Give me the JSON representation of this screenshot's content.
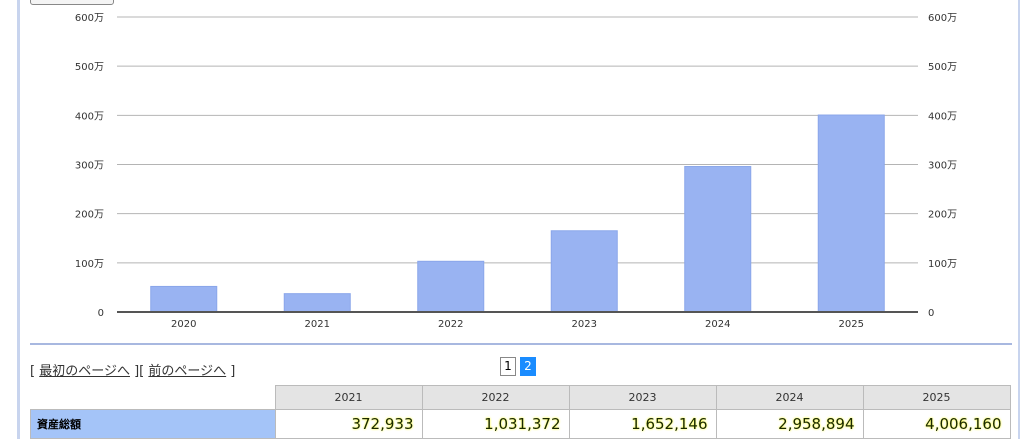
{
  "chart_data": {
    "type": "bar",
    "categories": [
      "2020",
      "2021",
      "2022",
      "2023",
      "2024",
      "2025"
    ],
    "values": [
      520000,
      372933,
      1031372,
      1652146,
      2958894,
      4006160
    ],
    "ylim": [
      0,
      6000000
    ],
    "yticks": [
      "0",
      "100万",
      "200万",
      "300万",
      "400万",
      "500万",
      "600万"
    ],
    "grid": true,
    "color": "#99b3f2"
  },
  "nav": {
    "first": "最初のページへ",
    "prev": "前のページへ"
  },
  "pages": [
    "1",
    "2"
  ],
  "current_page": "2",
  "table": {
    "headers": [
      "2021",
      "2022",
      "2023",
      "2024",
      "2025"
    ],
    "rows": [
      {
        "label": "資産総額",
        "values": [
          "372,933",
          "1,031,372",
          "1,652,146",
          "2,958,894",
          "4,006,160"
        ]
      }
    ]
  }
}
